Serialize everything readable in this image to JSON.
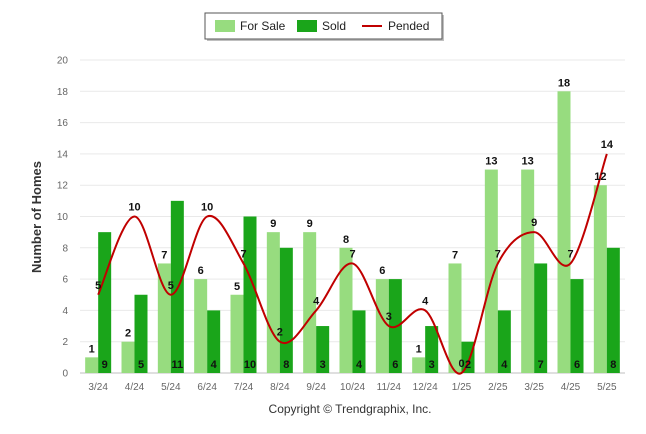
{
  "chart_data": {
    "type": "bar",
    "ylabel": "Number of Homes",
    "ylim": [
      0,
      20
    ],
    "yticks": [
      0,
      2,
      4,
      6,
      8,
      10,
      12,
      14,
      16,
      18,
      20
    ],
    "grid": true,
    "legend_position": "top-center",
    "categories": [
      "3/24",
      "4/24",
      "5/24",
      "6/24",
      "7/24",
      "8/24",
      "9/24",
      "10/24",
      "11/24",
      "12/24",
      "1/25",
      "2/25",
      "3/25",
      "4/25",
      "5/25"
    ],
    "series": [
      {
        "name": "For Sale",
        "kind": "bar",
        "color": "#97dc7f",
        "values": [
          1,
          2,
          7,
          6,
          5,
          9,
          9,
          8,
          6,
          1,
          7,
          13,
          13,
          18,
          12
        ]
      },
      {
        "name": "Sold",
        "kind": "bar",
        "color": "#1aa51a",
        "values": [
          9,
          5,
          11,
          4,
          10,
          8,
          3,
          4,
          6,
          3,
          2,
          4,
          7,
          6,
          8
        ]
      },
      {
        "name": "Pended",
        "kind": "line",
        "color": "#c00000",
        "values": [
          5,
          10,
          5,
          10,
          7,
          2,
          4,
          7,
          3,
          4,
          0,
          7,
          9,
          7,
          14
        ]
      }
    ]
  },
  "copyright": "Copyright © Trendgraphix, Inc."
}
